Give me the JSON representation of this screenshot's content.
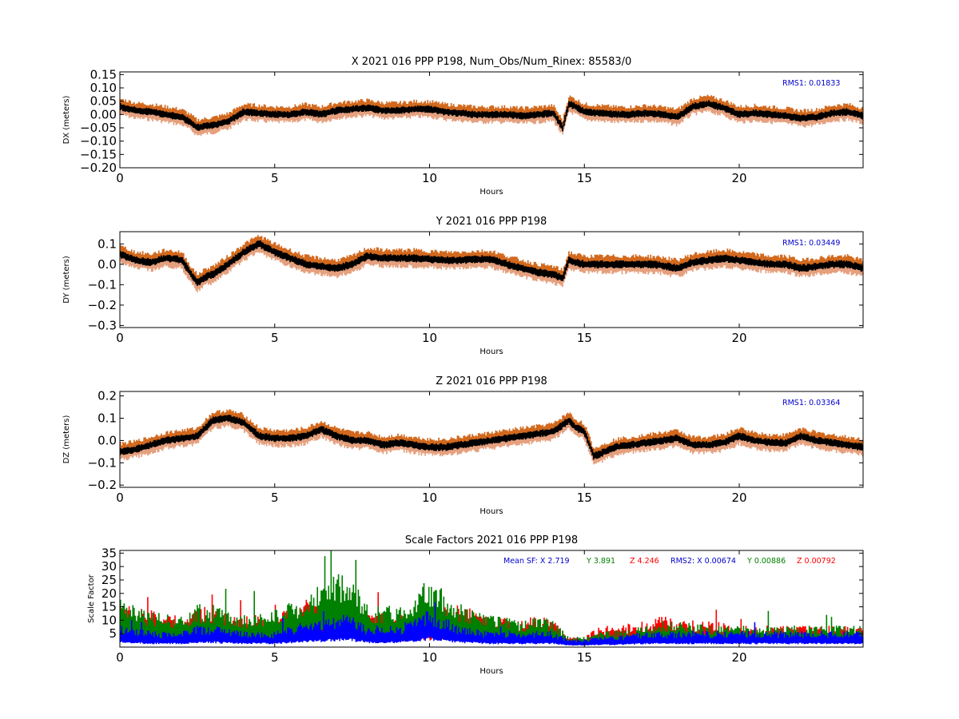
{
  "chart_data": [
    {
      "type": "scatter",
      "title": "X 2021 016 PPP  P198, Num_Obs/Num_Rinex: 85583/0",
      "xlabel": "Hours",
      "ylabel": "DX (meters)",
      "xlim": [
        0,
        24
      ],
      "ylim": [
        -0.2,
        0.16
      ],
      "xticks": [
        "0",
        "5",
        "10",
        "15",
        "20"
      ],
      "yticks": [
        "0.15",
        "0.10",
        "0.05",
        "0.00",
        "−0.05",
        "−0.10",
        "−0.15",
        "−0.20"
      ],
      "annotation": "RMS1:  0.01833",
      "annotation_color": "#0000cc",
      "series_colors": {
        "upper": "#d2691e",
        "lower": "#e5a07e",
        "center": "#000000"
      },
      "envelope": 0.018,
      "x": [
        0,
        0.5,
        1,
        1.5,
        2,
        2.3,
        2.5,
        2.7,
        3,
        3.5,
        4,
        4.5,
        5,
        5.5,
        6,
        6.5,
        7,
        7.5,
        8,
        8.5,
        9,
        9.5,
        10,
        10.5,
        11,
        11.5,
        12,
        12.5,
        13,
        13.5,
        14,
        14.3,
        14.5,
        14.7,
        15,
        15.5,
        16,
        16.5,
        17,
        17.5,
        18,
        18.5,
        19,
        19.5,
        20,
        20.5,
        21,
        21.5,
        22,
        22.5,
        23,
        23.5,
        24
      ],
      "y": [
        0.03,
        0.015,
        0.01,
        0.0,
        -0.01,
        -0.03,
        -0.05,
        -0.045,
        -0.04,
        -0.025,
        0.01,
        0.005,
        0.0,
        0.0,
        0.01,
        0.0,
        0.015,
        0.02,
        0.025,
        0.015,
        0.015,
        0.02,
        0.02,
        0.01,
        0.005,
        0.0,
        0.0,
        0.0,
        -0.005,
        0.0,
        0.005,
        -0.05,
        0.04,
        0.03,
        0.01,
        0.005,
        0.0,
        0.0,
        0.005,
        0.0,
        -0.01,
        0.03,
        0.04,
        0.025,
        0.0,
        0.005,
        0.0,
        -0.005,
        -0.015,
        -0.01,
        0.005,
        0.01,
        -0.005
      ]
    },
    {
      "type": "scatter",
      "title": "Y 2021 016 PPP  P198",
      "xlabel": "Hours",
      "ylabel": "DY (meters)",
      "xlim": [
        0,
        24
      ],
      "ylim": [
        -0.31,
        0.16
      ],
      "xticks": [
        "0",
        "5",
        "10",
        "15",
        "20"
      ],
      "yticks": [
        "0.1",
        "0.0",
        "−0.1",
        "−0.2",
        "−0.3"
      ],
      "annotation": "RMS1:  0.03449",
      "annotation_color": "#0000cc",
      "series_colors": {
        "upper": "#d2691e",
        "lower": "#e5a07e",
        "center": "#000000"
      },
      "envelope": 0.025,
      "x": [
        0,
        0.5,
        1,
        1.5,
        2,
        2.3,
        2.5,
        2.8,
        3,
        3.5,
        4,
        4.5,
        5,
        5.5,
        6,
        6.5,
        7,
        7.5,
        8,
        8.5,
        9,
        9.5,
        10,
        10.5,
        11,
        11.5,
        12,
        12.5,
        13,
        13.5,
        14,
        14.3,
        14.5,
        14.7,
        15,
        15.5,
        16,
        16.5,
        17,
        17.5,
        18,
        18.5,
        19,
        19.5,
        20,
        20.5,
        21,
        21.5,
        22,
        22.5,
        23,
        23.5,
        24
      ],
      "y": [
        0.05,
        0.02,
        0.01,
        0.03,
        0.02,
        -0.05,
        -0.09,
        -0.06,
        -0.05,
        0.0,
        0.06,
        0.1,
        0.06,
        0.03,
        0.0,
        -0.01,
        -0.02,
        0.0,
        0.04,
        0.03,
        0.03,
        0.03,
        0.025,
        0.02,
        0.02,
        0.025,
        0.025,
        0.0,
        -0.02,
        -0.04,
        -0.05,
        -0.07,
        0.02,
        0.01,
        0.0,
        0.0,
        0.0,
        0.0,
        0.0,
        -0.005,
        -0.02,
        0.01,
        0.02,
        0.03,
        0.02,
        0.01,
        0.0,
        0.0,
        -0.02,
        -0.01,
        0.0,
        0.0,
        -0.02
      ]
    },
    {
      "type": "scatter",
      "title": "Z 2021 016 PPP  P198",
      "xlabel": "Hours",
      "ylabel": "DZ (meters)",
      "xlim": [
        0,
        24
      ],
      "ylim": [
        -0.21,
        0.22
      ],
      "xticks": [
        "0",
        "5",
        "10",
        "15",
        "20"
      ],
      "yticks": [
        "0.2",
        "0.1",
        "0.0",
        "−0.1",
        "−0.2"
      ],
      "annotation": "RMS1:  0.03364",
      "annotation_color": "#0000cc",
      "series_colors": {
        "upper": "#d2691e",
        "lower": "#e5a07e",
        "center": "#000000"
      },
      "envelope": 0.022,
      "x": [
        0,
        0.5,
        1,
        1.5,
        2,
        2.5,
        3,
        3.5,
        4,
        4.5,
        5,
        5.5,
        6,
        6.5,
        7,
        7.5,
        8,
        8.5,
        9,
        9.5,
        10,
        10.5,
        11,
        11.5,
        12,
        12.5,
        13,
        13.5,
        14,
        14.3,
        14.5,
        14.7,
        15,
        15.3,
        15.5,
        16,
        16.5,
        17,
        17.5,
        18,
        18.5,
        19,
        19.5,
        20,
        20.5,
        21,
        21.5,
        22,
        22.5,
        23,
        23.5,
        24
      ],
      "y": [
        -0.05,
        -0.04,
        -0.02,
        0.0,
        0.01,
        0.02,
        0.09,
        0.1,
        0.08,
        0.02,
        0.01,
        0.01,
        0.02,
        0.05,
        0.02,
        0.0,
        0.0,
        -0.02,
        -0.01,
        -0.02,
        -0.03,
        -0.03,
        -0.02,
        -0.01,
        0.0,
        0.01,
        0.02,
        0.03,
        0.04,
        0.07,
        0.09,
        0.06,
        0.04,
        -0.07,
        -0.06,
        -0.03,
        -0.02,
        -0.01,
        0.0,
        0.01,
        -0.02,
        -0.02,
        -0.01,
        0.02,
        0.0,
        -0.01,
        -0.01,
        0.02,
        0.0,
        -0.01,
        -0.02,
        -0.03
      ]
    },
    {
      "type": "scatter",
      "title": "Scale Factors 2021 016 PPP  P198",
      "xlabel": "Hours",
      "ylabel": "Scale Factor",
      "xlim": [
        0,
        24
      ],
      "ylim": [
        0,
        36
      ],
      "xticks": [
        "0",
        "5",
        "10",
        "15",
        "20"
      ],
      "yticks": [
        "35",
        "30",
        "25",
        "20",
        "15",
        "10",
        "5"
      ],
      "annotation_parts": [
        {
          "text": "Mean SF: X   2.719",
          "color": "#0000cc"
        },
        {
          "text": "Y   3.891",
          "color": "#008000"
        },
        {
          "text": "Z   4.246",
          "color": "#ff0000"
        },
        {
          "text": "RMS2: X  0.00674",
          "color": "#0000cc"
        },
        {
          "text": "Y  0.00886",
          "color": "#008000"
        },
        {
          "text": "Z  0.00792",
          "color": "#ff0000"
        }
      ],
      "series": [
        {
          "color": "#ff0000",
          "x": [
            0,
            1,
            2,
            2.5,
            3,
            4,
            5,
            6,
            6.5,
            7,
            7.5,
            8,
            9,
            10,
            11,
            12,
            13,
            13.5,
            14,
            14.5,
            15,
            15.5,
            16,
            17,
            17.5,
            18,
            19,
            20,
            21,
            22,
            23,
            24
          ],
          "y": [
            8,
            7,
            6,
            8,
            7,
            6,
            6,
            9,
            7,
            8,
            8,
            7,
            6,
            7,
            8,
            6,
            5,
            6,
            5,
            2,
            2,
            4,
            4,
            5,
            6,
            5,
            5,
            4,
            4,
            4,
            4,
            4
          ]
        },
        {
          "color": "#008000",
          "x": [
            0,
            1,
            2,
            2.5,
            3,
            4,
            5,
            6,
            6.5,
            7,
            7.5,
            8,
            9,
            10,
            11,
            12,
            13,
            13.5,
            14,
            14.5,
            15,
            15.5,
            16,
            17,
            17.5,
            18,
            19,
            20,
            21,
            22,
            23,
            24
          ],
          "y": [
            9,
            7,
            6,
            8,
            8,
            6,
            7,
            10,
            12,
            14,
            13,
            8,
            8,
            13,
            8,
            6,
            5,
            6,
            5,
            2,
            2,
            3,
            3,
            4,
            5,
            5,
            4,
            4,
            4,
            4,
            4,
            4
          ]
        },
        {
          "color": "#0000ff",
          "x": [
            0,
            1,
            2,
            2.5,
            3,
            4,
            5,
            6,
            6.5,
            7,
            7.5,
            8,
            9,
            10,
            11,
            12,
            13,
            13.5,
            14,
            14.5,
            15,
            15.5,
            16,
            17,
            17.5,
            18,
            19,
            20,
            21,
            22,
            23,
            24
          ],
          "y": [
            4,
            3,
            3,
            4,
            4,
            3,
            3,
            5,
            5,
            6,
            6,
            4,
            4,
            7,
            4,
            3,
            3,
            3,
            3,
            1.5,
            1.5,
            2,
            2,
            3,
            3,
            3,
            3,
            3,
            3,
            3,
            3,
            3
          ]
        }
      ]
    }
  ]
}
